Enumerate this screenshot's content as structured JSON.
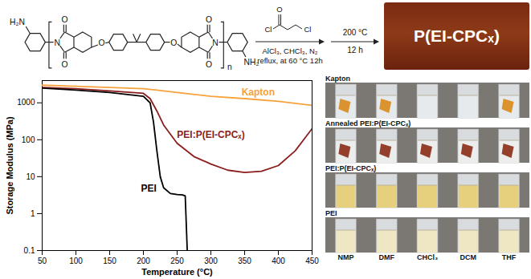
{
  "scheme": {
    "amine_left": "H₂N",
    "amine_right": "NH₂",
    "repeat": "n",
    "imide_oxygen": "O",
    "imide_nitrogen": "N",
    "ether_oxygen": "O",
    "reagent_oxygen": "O",
    "reagent_chlorine": "Cl",
    "conditions_1": [
      "AlCl₃, CHCl₃, N₂",
      "reflux, at 60 °C 12h"
    ],
    "conditions_2": [
      "200 °C",
      "12 h"
    ]
  },
  "photo": {
    "label": "P(EI-CPCₓ)"
  },
  "chart_data": {
    "type": "line",
    "x_label": "Temperature (°C)",
    "y_label": "Storage Modulus (MPa)",
    "log": "y",
    "grid": false,
    "xlim": [
      50,
      450
    ],
    "xticks": [
      50,
      100,
      150,
      200,
      250,
      300,
      350,
      400,
      450
    ],
    "ylim": [
      0.1,
      4000
    ],
    "yticks": [
      0.1,
      1,
      10,
      100,
      1000
    ],
    "series": [
      {
        "name": "Kapton",
        "color": "#f7a23b",
        "x": [
          50,
          100,
          150,
          200,
          220,
          250,
          300,
          350,
          400,
          450
        ],
        "values": [
          3000,
          2800,
          2600,
          2400,
          2200,
          1900,
          1500,
          1300,
          1100,
          850
        ]
      },
      {
        "name": "PEI:P(EI-CPCₓ)",
        "color": "#8b1d1d",
        "x": [
          50,
          100,
          150,
          200,
          210,
          220,
          230,
          250,
          275,
          300,
          325,
          350,
          375,
          400,
          425,
          450
        ],
        "values": [
          2600,
          2400,
          2100,
          1800,
          1300,
          600,
          250,
          80,
          35,
          22,
          15,
          13,
          14,
          20,
          50,
          200
        ]
      },
      {
        "name": "PEI",
        "color": "#000000",
        "x": [
          50,
          100,
          150,
          200,
          210,
          215,
          220,
          225,
          230,
          240,
          250,
          258,
          262,
          265
        ],
        "values": [
          2500,
          2200,
          1900,
          1500,
          1000,
          300,
          50,
          10,
          5,
          3.5,
          3.3,
          3.2,
          3,
          0.1
        ]
      }
    ],
    "annotations": [
      {
        "text": "Kapton",
        "x": 370,
        "y": 1600
      },
      {
        "text": "PEI:P(EI-CPCₓ)",
        "x": 300,
        "y": 110
      },
      {
        "text": "PEI",
        "x": 208,
        "y": 4
      }
    ]
  },
  "solubility_test": {
    "rows": [
      "Kapton",
      "Annealed PEI:P(EI-CPCₓ)",
      "PEI:P(EI-CPCₓ)",
      "PEI"
    ],
    "solvents": [
      "NMP",
      "DMF",
      "CHCl₃",
      "DCM",
      "THF"
    ]
  }
}
